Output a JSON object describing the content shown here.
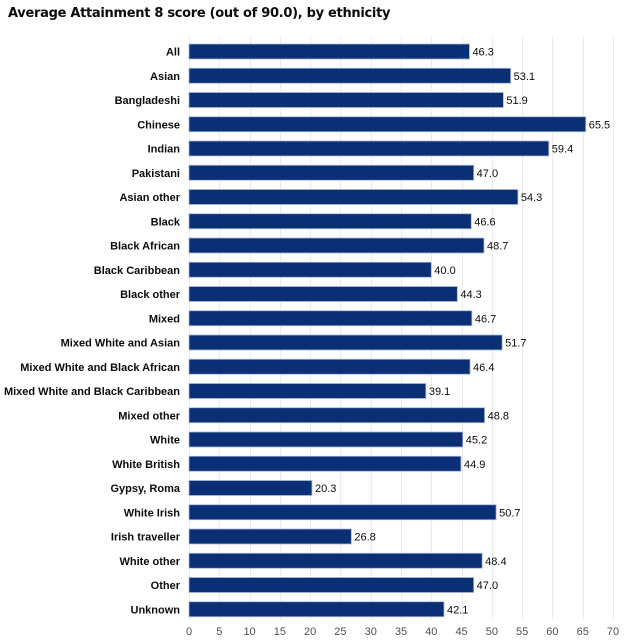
{
  "chart_data": {
    "type": "bar",
    "orientation": "horizontal",
    "title": "Average Attainment 8 score (out of 90.0), by ethnicity",
    "xlabel": "",
    "ylabel": "",
    "xlim": [
      0,
      70
    ],
    "ticks": [
      0,
      5,
      10,
      15,
      20,
      25,
      30,
      35,
      40,
      45,
      50,
      55,
      60,
      65,
      70
    ],
    "grid": true,
    "bar_color": "#0b2f75",
    "categories": [
      "All",
      "Asian",
      "Bangladeshi",
      "Chinese",
      "Indian",
      "Pakistani",
      "Asian other",
      "Black",
      "Black African",
      "Black Caribbean",
      "Black other",
      "Mixed",
      "Mixed White and Asian",
      "Mixed White and Black African",
      "Mixed White and Black Caribbean",
      "Mixed other",
      "White",
      "White British",
      "Gypsy, Roma",
      "White Irish",
      "Irish traveller",
      "White other",
      "Other",
      "Unknown"
    ],
    "values": [
      46.3,
      53.1,
      51.9,
      65.5,
      59.4,
      47.0,
      54.3,
      46.6,
      48.7,
      40.0,
      44.3,
      46.7,
      51.7,
      46.4,
      39.1,
      48.8,
      45.2,
      44.9,
      20.3,
      50.7,
      26.8,
      48.4,
      47.0,
      42.1
    ]
  }
}
